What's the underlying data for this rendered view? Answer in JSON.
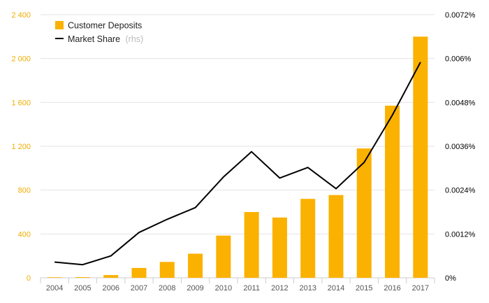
{
  "chart_data": {
    "type": "bar+line",
    "categories": [
      "2004",
      "2005",
      "2006",
      "2007",
      "2008",
      "2009",
      "2010",
      "2011",
      "2012",
      "2013",
      "2014",
      "2015",
      "2016",
      "2017"
    ],
    "series": [
      {
        "name": "Customer Deposits",
        "type": "bar",
        "axis": "left",
        "color": "#fbb100",
        "values": [
          5,
          6,
          25,
          90,
          145,
          220,
          385,
          600,
          550,
          720,
          755,
          1180,
          1570,
          2200
        ]
      },
      {
        "name": "Market Share",
        "note": "(rhs)",
        "type": "line",
        "axis": "right",
        "color": "#000000",
        "values": [
          0.00043,
          0.00036,
          0.0006,
          0.00124,
          0.0016,
          0.00192,
          0.00276,
          0.00345,
          0.00273,
          0.00302,
          0.00244,
          0.00316,
          0.00445,
          0.0059
        ]
      }
    ],
    "y_left": {
      "range": [
        0,
        2400
      ],
      "ticks": [
        0,
        400,
        800,
        1200,
        1600,
        2000,
        2400
      ],
      "tick_labels": [
        "0",
        "400",
        "800",
        "1 200",
        "1 600",
        "2 000",
        "2 400"
      ],
      "color": "#f0ad00"
    },
    "y_right": {
      "range": [
        0,
        0.0072
      ],
      "ticks": [
        0,
        0.0012,
        0.0024,
        0.0036,
        0.0048,
        0.006,
        0.0072
      ],
      "tick_labels": [
        "0%",
        "0.0012%",
        "0.0024%",
        "0.0036%",
        "0.0048%",
        "0.006%",
        "0.0072%"
      ],
      "color": "#000000"
    },
    "legend": {
      "placement": "top-left",
      "items": [
        {
          "label": "Customer Deposits",
          "note": ""
        },
        {
          "label": "Market Share",
          "note": "(rhs)"
        }
      ]
    },
    "grid": "horizontal",
    "title": "",
    "xlabel": "",
    "ylabel": ""
  }
}
